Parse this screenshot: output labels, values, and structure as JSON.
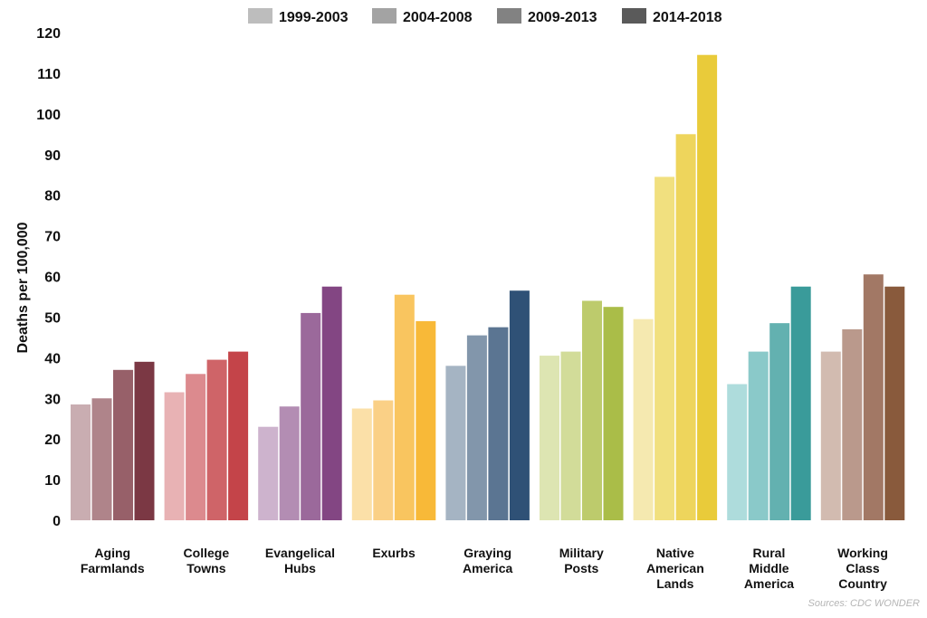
{
  "chart_data": {
    "type": "bar",
    "ylabel": "Deaths per 100,000",
    "ylim": [
      0,
      120
    ],
    "yticks": [
      0,
      10,
      20,
      30,
      40,
      50,
      60,
      70,
      80,
      90,
      100,
      110,
      120
    ],
    "grid": false,
    "legend_position": "top-center",
    "source": "Sources: CDC WONDER",
    "series": [
      {
        "name": "1999-2003",
        "legend_color": "#bdbdbd"
      },
      {
        "name": "2004-2008",
        "legend_color": "#a3a3a3"
      },
      {
        "name": "2009-2013",
        "legend_color": "#828282"
      },
      {
        "name": "2014-2018",
        "legend_color": "#5a5a5a"
      }
    ],
    "categories": [
      {
        "lines": [
          "Aging",
          "Farmlands"
        ],
        "values": [
          28.5,
          30,
          37,
          39
        ],
        "colors": [
          "#c9adb1",
          "#af848a",
          "#976069",
          "#7b3844"
        ]
      },
      {
        "lines": [
          "College",
          "Towns"
        ],
        "values": [
          31.5,
          36,
          39.5,
          41.5
        ],
        "colors": [
          "#e8b2b4",
          "#dc8a8e",
          "#cf6468",
          "#c44449"
        ]
      },
      {
        "lines": [
          "Evangelical",
          "Hubs"
        ],
        "values": [
          23,
          28,
          51,
          57.5
        ],
        "colors": [
          "#cdb3cd",
          "#b38db3",
          "#9b699b",
          "#834683"
        ]
      },
      {
        "lines": [
          "Exurbs"
        ],
        "values": [
          27.5,
          29.5,
          55.5,
          49
        ],
        "colors": [
          "#fbe0a8",
          "#fad086",
          "#f9c55f",
          "#f8b938"
        ]
      },
      {
        "lines": [
          "Graying",
          "America"
        ],
        "values": [
          38,
          45.5,
          47.5,
          56.5
        ],
        "colors": [
          "#a5b4c3",
          "#8296ab",
          "#5b7592",
          "#2f5176"
        ]
      },
      {
        "lines": [
          "Military",
          "Posts"
        ],
        "values": [
          40.5,
          41.5,
          54,
          52.5
        ],
        "colors": [
          "#dde5b2",
          "#d2dc99",
          "#bdcb6c",
          "#aabd48"
        ]
      },
      {
        "lines": [
          "Native",
          "American",
          "Lands"
        ],
        "values": [
          49.5,
          84.5,
          95,
          114.5
        ],
        "colors": [
          "#f5e9b0",
          "#f1e07f",
          "#eed55c",
          "#e9cb3a"
        ]
      },
      {
        "lines": [
          "Rural",
          "Middle",
          "America"
        ],
        "values": [
          33.5,
          41.5,
          48.5,
          57.5
        ],
        "colors": [
          "#aedcdc",
          "#8ac9c9",
          "#63b1b0",
          "#3a9b9a"
        ]
      },
      {
        "lines": [
          "Working",
          "Class",
          "Country"
        ],
        "values": [
          41.5,
          47,
          60.5,
          57.5
        ],
        "colors": [
          "#d2bbb0",
          "#ba998c",
          "#a27865",
          "#895a3c"
        ]
      }
    ]
  }
}
